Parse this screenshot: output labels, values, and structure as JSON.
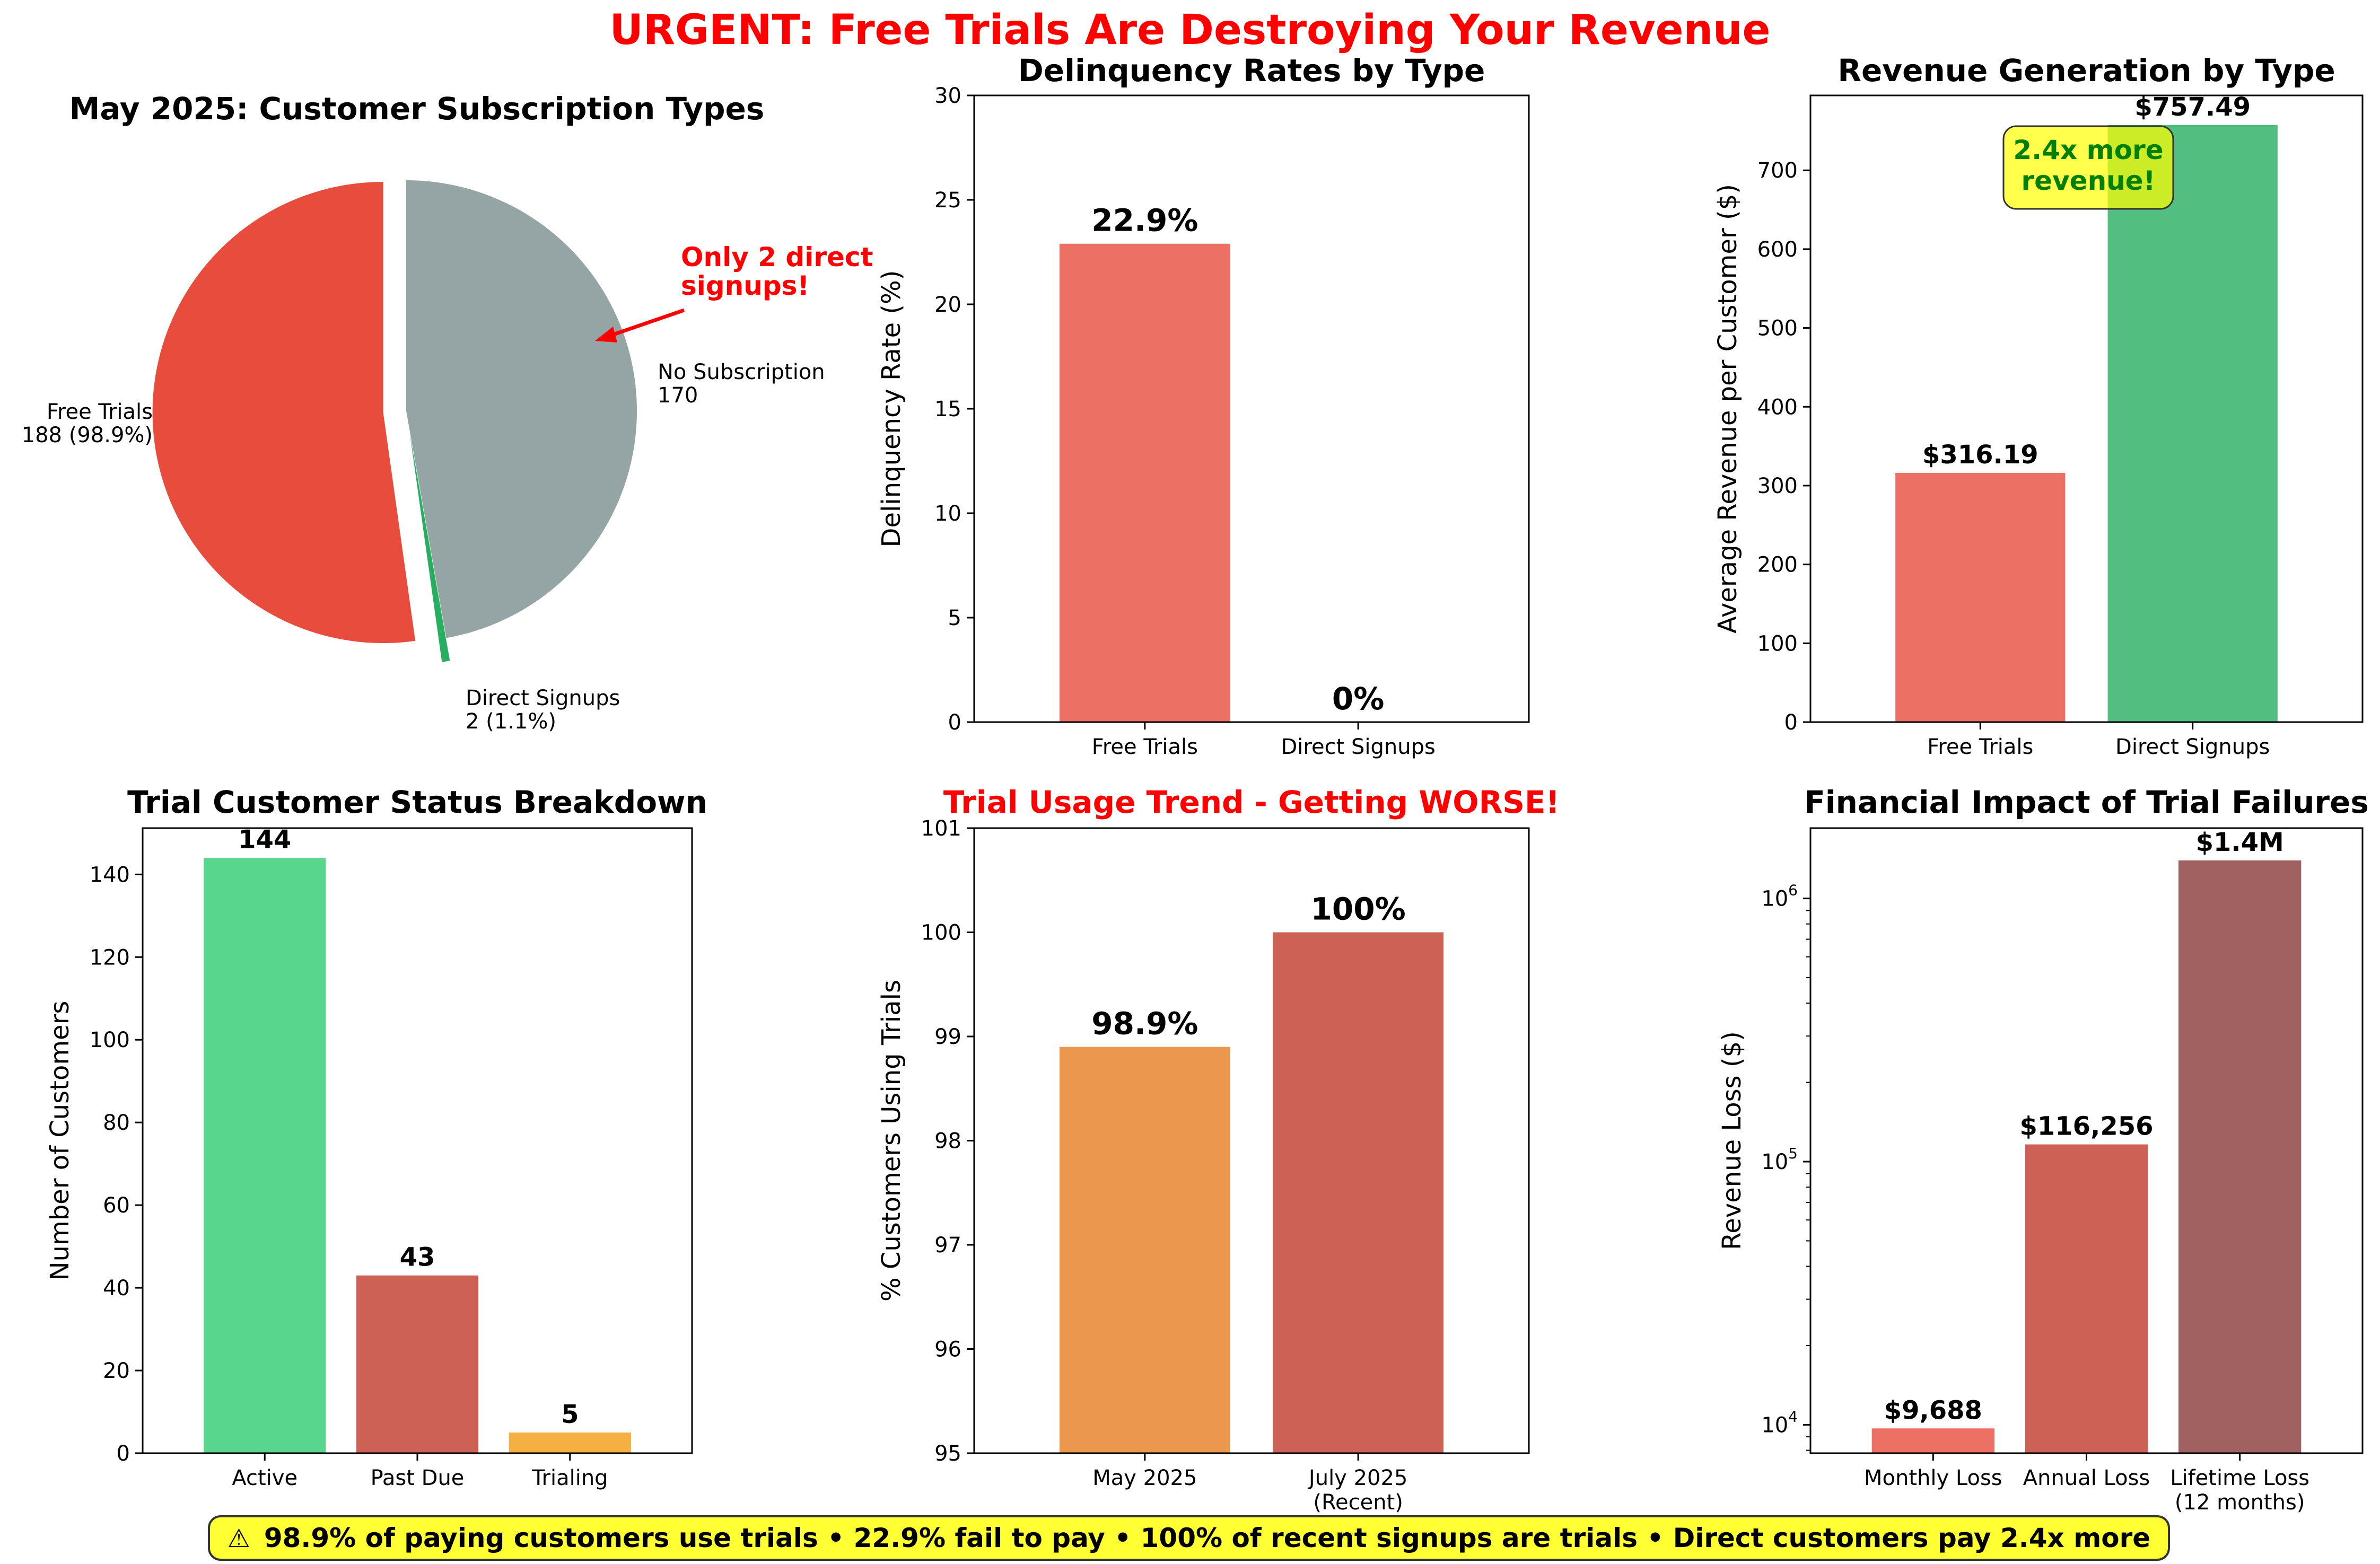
{
  "title": "URGENT: Free Trials Are Destroying Your Revenue",
  "banner": {
    "icon": "warning-icon",
    "text": "98.9% of paying customers use trials • 22.9% fail to pay • 100% of recent signups are trials • Direct customers pay 2.4x more"
  },
  "chart_data": [
    {
      "id": "subscription-pie",
      "type": "pie",
      "title": "May 2025: Customer Subscription Types",
      "slices": [
        {
          "label": "Free Trials",
          "value": 188,
          "value_label": "188 (98.9%)",
          "color": "#e74c3c",
          "exploded": true
        },
        {
          "label": "Direct Signups",
          "value": 2,
          "value_label": "2 (1.1%)",
          "color": "#27ae60",
          "exploded": true
        },
        {
          "label": "No Subscription",
          "value": 170,
          "value_label": "170",
          "color": "#95a5a6",
          "exploded": false
        }
      ],
      "annotation": {
        "lines": [
          "Only 2 direct",
          "signups!"
        ],
        "color": "#ff0000"
      }
    },
    {
      "id": "delinquency-bar",
      "type": "bar",
      "title": "Delinquency Rates by Type",
      "categories": [
        "Free Trials",
        "Direct Signups"
      ],
      "values": [
        22.9,
        0
      ],
      "value_labels": [
        "22.9%",
        "0%"
      ],
      "colors": [
        "#e74c3c",
        "#27ae60"
      ],
      "ylabel": "Delinquency Rate (%)",
      "ylim": [
        0,
        30
      ],
      "yticks": [
        0,
        5,
        10,
        15,
        20,
        25,
        30
      ]
    },
    {
      "id": "revenue-bar",
      "type": "bar",
      "title": "Revenue Generation by Type",
      "categories": [
        "Free Trials",
        "Direct Signups"
      ],
      "values": [
        316.19,
        757.49
      ],
      "value_labels": [
        "$316.19",
        "$757.49"
      ],
      "colors": [
        "#e74c3c",
        "#27ae60"
      ],
      "ylabel": "Average Revenue per Customer ($)",
      "ylim": [
        0,
        795
      ],
      "yticks": [
        0,
        100,
        200,
        300,
        400,
        500,
        600,
        700
      ],
      "annotation": {
        "lines": [
          "2.4x more",
          "revenue!"
        ],
        "color": "#008000",
        "box_color": "#ffff00"
      }
    },
    {
      "id": "trial-status-bar",
      "type": "bar",
      "title": "Trial Customer Status Breakdown",
      "categories": [
        "Active",
        "Past Due",
        "Trialing"
      ],
      "values": [
        144,
        43,
        5
      ],
      "value_labels": [
        "144",
        "43",
        "5"
      ],
      "colors": [
        "#2ecc71",
        "#c0392b",
        "#f39c12"
      ],
      "ylabel": "Number of Customers",
      "ylim": [
        0,
        151.2
      ],
      "yticks": [
        0,
        20,
        40,
        60,
        80,
        100,
        120,
        140
      ]
    },
    {
      "id": "trial-trend-bar",
      "type": "bar",
      "title": "Trial Usage Trend - Getting WORSE!",
      "title_color": "#ff0000",
      "categories": [
        [
          "May 2025"
        ],
        [
          "July 2025",
          "(Recent)"
        ]
      ],
      "values": [
        98.9,
        100
      ],
      "value_labels": [
        "98.9%",
        "100%"
      ],
      "colors": [
        "#e67e22",
        "#c0392b"
      ],
      "ylabel": "% Customers Using Trials",
      "ylim": [
        95,
        101
      ],
      "yticks": [
        95,
        96,
        97,
        98,
        99,
        100,
        101
      ]
    },
    {
      "id": "financial-impact-bar",
      "type": "bar",
      "title": "Financial Impact of Trial Failures",
      "categories": [
        [
          "Monthly Loss"
        ],
        [
          "Annual Loss"
        ],
        [
          "Lifetime Loss",
          "(12 months)"
        ]
      ],
      "values": [
        9688,
        116256,
        1395072
      ],
      "value_labels": [
        "$9,688",
        "$116,256",
        "$1.4M"
      ],
      "colors": [
        "#e74c3c",
        "#c0392b",
        "#8b3a3a"
      ],
      "ylabel": "Revenue Loss ($)",
      "yscale": "log",
      "ylim": [
        7800,
        1850000
      ],
      "yticks": [
        10000,
        100000,
        1000000
      ],
      "ytick_labels": [
        [
          "10",
          "4"
        ],
        [
          "10",
          "5"
        ],
        [
          "10",
          "6"
        ]
      ]
    }
  ]
}
